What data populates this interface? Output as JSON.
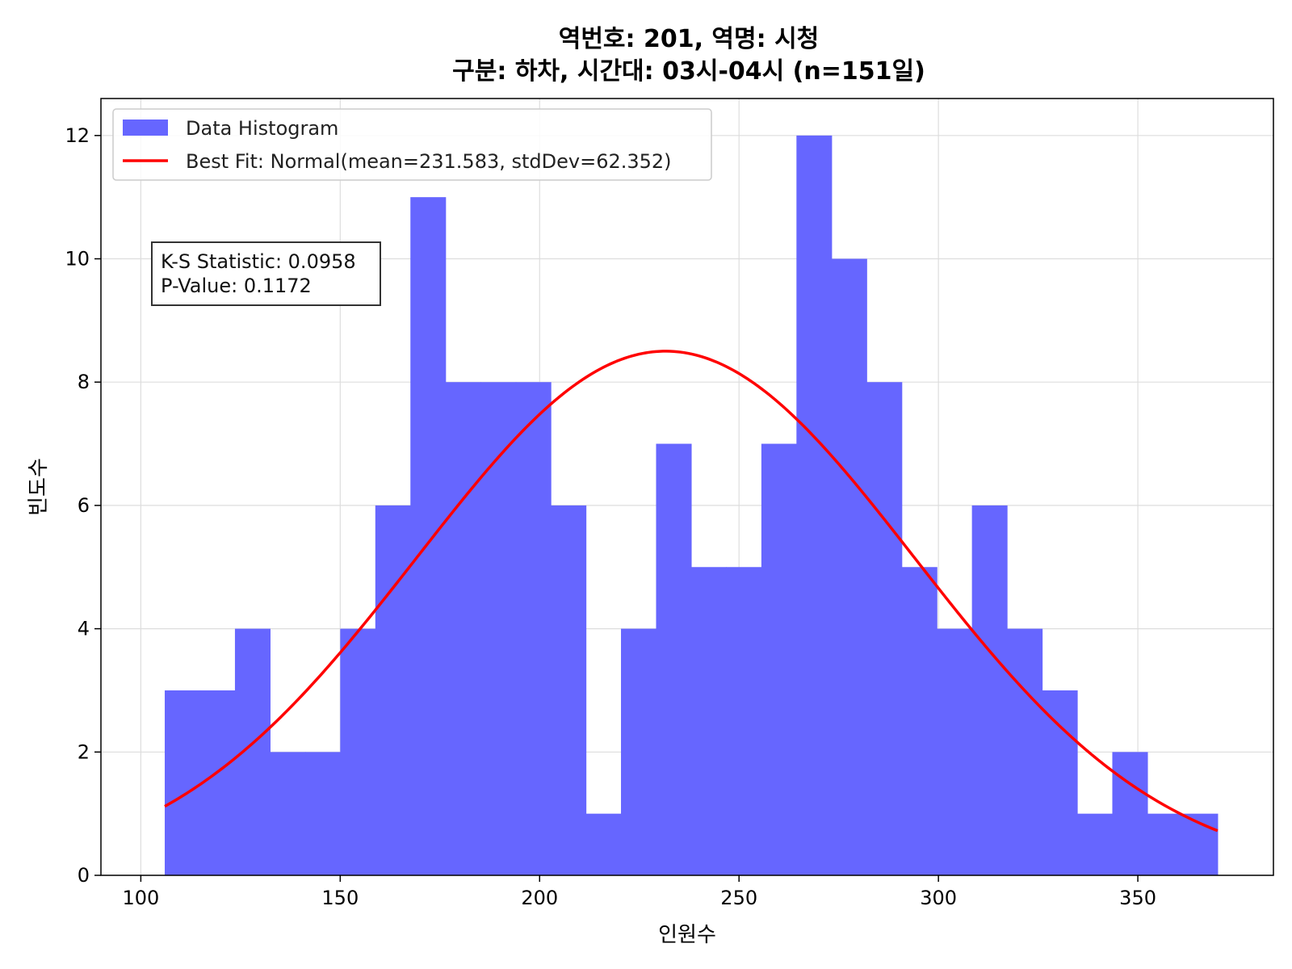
{
  "chart_data": {
    "type": "bar",
    "title_line1": "역번호: 201, 역명: 시청",
    "title_line2": "구분: 하차, 시간대: 03시-04시 (n=151일)",
    "xlabel": "인원수",
    "ylabel": "빈도수",
    "xlim": [
      90,
      384
    ],
    "ylim": [
      0,
      12.6
    ],
    "xticks": [
      100,
      150,
      200,
      250,
      300,
      350
    ],
    "yticks": [
      0,
      2,
      4,
      6,
      8,
      10,
      12
    ],
    "grid": true,
    "legend_position": "top-left",
    "histogram": {
      "name": "Data Histogram",
      "color": "#6666ff",
      "bin_start": 106,
      "bin_width": 8.8,
      "counts": [
        3,
        3,
        4,
        2,
        2,
        4,
        6,
        11,
        8,
        8,
        8,
        6,
        1,
        4,
        7,
        5,
        5,
        7,
        12,
        10,
        8,
        5,
        4,
        6,
        4,
        3,
        1,
        2,
        1,
        1
      ]
    },
    "fit_curve": {
      "name": "Best Fit: Normal(mean=231.583, stdDev=62.352)",
      "color": "#ff0000",
      "mean": 231.583,
      "std": 62.352,
      "x_range": [
        106,
        370
      ]
    },
    "annotation": {
      "line1": "K-S Statistic: 0.0958",
      "line2": "P-Value: 0.1172"
    }
  }
}
